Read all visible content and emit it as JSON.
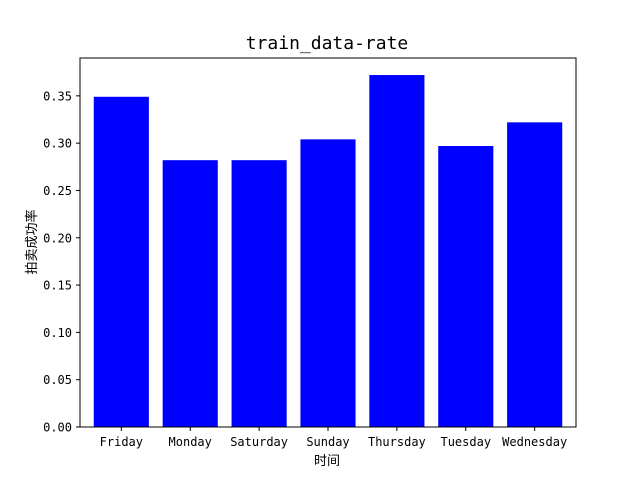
{
  "chart_data": {
    "type": "bar",
    "title": "train_data-rate",
    "xlabel": "时间",
    "ylabel": "拍卖成功率",
    "categories": [
      "Friday",
      "Monday",
      "Saturday",
      "Sunday",
      "Thursday",
      "Tuesday",
      "Wednesday"
    ],
    "values": [
      0.349,
      0.282,
      0.282,
      0.304,
      0.372,
      0.297,
      0.322
    ],
    "ylim": [
      0,
      0.39
    ],
    "yticks": [
      "0.00",
      "0.05",
      "0.10",
      "0.15",
      "0.20",
      "0.25",
      "0.30",
      "0.35"
    ],
    "bar_color": "#0000ff",
    "grid": false,
    "legend": "none"
  }
}
